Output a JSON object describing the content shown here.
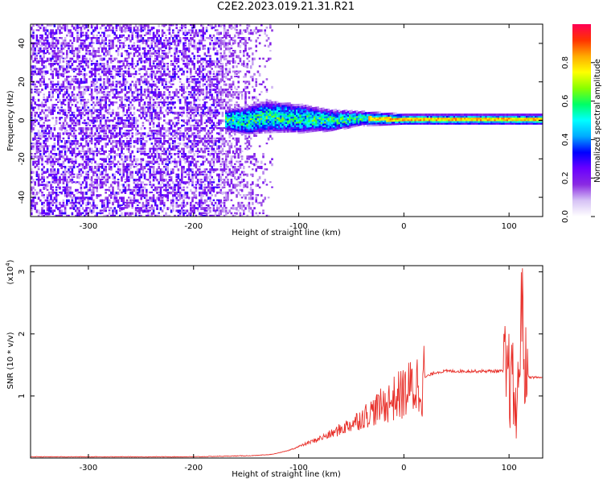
{
  "title": "C2E2.2023.019.21.31.R21",
  "chart_data": [
    {
      "type": "heatmap",
      "xlabel": "Height of straight line (km)",
      "ylabel": "Frequency (Hz)",
      "xlim": [
        -355,
        132
      ],
      "ylim": [
        -50,
        50
      ],
      "xticks": [
        -300,
        -200,
        -100,
        0,
        100
      ],
      "yticks": [
        -40,
        -20,
        0,
        20,
        40
      ],
      "noise_region": [
        -355,
        -125
      ],
      "signal_band": [
        {
          "x": -170,
          "center": 0,
          "halfwidth": 6
        },
        {
          "x": -150,
          "center": 0,
          "halfwidth": 8
        },
        {
          "x": -130,
          "center": 2,
          "halfwidth": 9
        },
        {
          "x": -100,
          "center": 1,
          "halfwidth": 8
        },
        {
          "x": -70,
          "center": 0,
          "halfwidth": 6
        },
        {
          "x": -40,
          "center": 1,
          "halfwidth": 4
        },
        {
          "x": 0,
          "center": 0.5,
          "halfwidth": 3
        },
        {
          "x": 50,
          "center": 0.5,
          "halfwidth": 3
        },
        {
          "x": 100,
          "center": 0.5,
          "halfwidth": 3
        },
        {
          "x": 132,
          "center": 0.5,
          "halfwidth": 3
        }
      ],
      "colorbar": {
        "label": "Normalized spectral amplitude",
        "ticks": [
          "0.0",
          "0.2",
          "0.4",
          "0.6",
          "0.8"
        ],
        "range": [
          0,
          1
        ],
        "colormap": [
          "#ffffff",
          "#d6c2f5",
          "#8a2be2",
          "#6a00ff",
          "#0000ff",
          "#00aaff",
          "#00ffff",
          "#00ff66",
          "#88ff00",
          "#ffff00",
          "#ffaa00",
          "#ff3300",
          "#ff0055"
        ]
      }
    },
    {
      "type": "line",
      "xlabel": "Height of straight line (km)",
      "ylabel": "SNR (10 * v/v)",
      "ylabel_multiplier": "(x10",
      "ylabel_exponent": "4",
      "ylabel_close": ")",
      "xlim": [
        -355,
        132
      ],
      "ylim": [
        0,
        3.1
      ],
      "xticks": [
        -300,
        -200,
        -100,
        0,
        100
      ],
      "yticks": [
        1,
        2,
        3
      ],
      "line_color": "#e8302a",
      "series": [
        {
          "x": [
            -355,
            -200,
            -140,
            -125,
            -110,
            -90,
            -70,
            -50,
            -30,
            -10,
            0,
            10,
            20,
            30,
            40,
            60,
            80,
            95,
            100,
            105,
            108,
            110,
            112,
            115,
            120,
            132
          ],
          "y": [
            0.02,
            0.02,
            0.04,
            0.06,
            0.12,
            0.25,
            0.38,
            0.55,
            0.75,
            0.95,
            1.05,
            1.15,
            1.3,
            1.38,
            1.4,
            1.4,
            1.4,
            1.4,
            1.3,
            1.0,
            0.6,
            1.8,
            2.6,
            1.4,
            1.3,
            1.3
          ]
        }
      ]
    }
  ]
}
